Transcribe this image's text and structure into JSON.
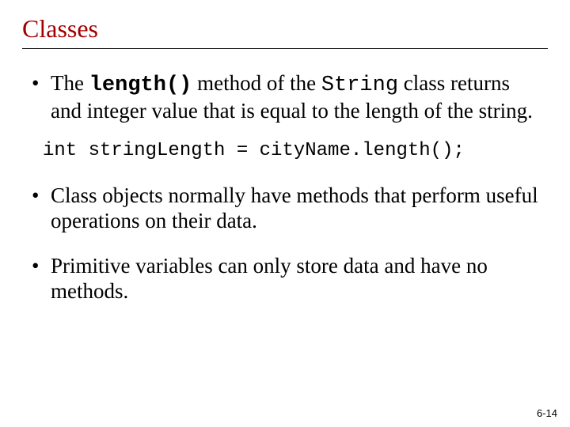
{
  "title": {
    "text": "Classes",
    "color": "#a00000"
  },
  "bullets": [
    {
      "parts": [
        {
          "text": "The ",
          "mono": false,
          "bold": false
        },
        {
          "text": "length()",
          "mono": true,
          "bold": true
        },
        {
          "text": " method of the ",
          "mono": false,
          "bold": false
        },
        {
          "text": "String",
          "mono": true,
          "bold": false
        },
        {
          "text": " class returns and integer value that is equal to the length of the string.",
          "mono": false,
          "bold": false
        }
      ]
    },
    {
      "parts": [
        {
          "text": "Class objects normally have methods that perform useful operations on their data.",
          "mono": false,
          "bold": false
        }
      ]
    },
    {
      "parts": [
        {
          "text": "Primitive variables can only store data and have no methods.",
          "mono": false,
          "bold": false
        }
      ]
    }
  ],
  "code_line": "int stringLength = cityName.length();",
  "footer": "6-14"
}
